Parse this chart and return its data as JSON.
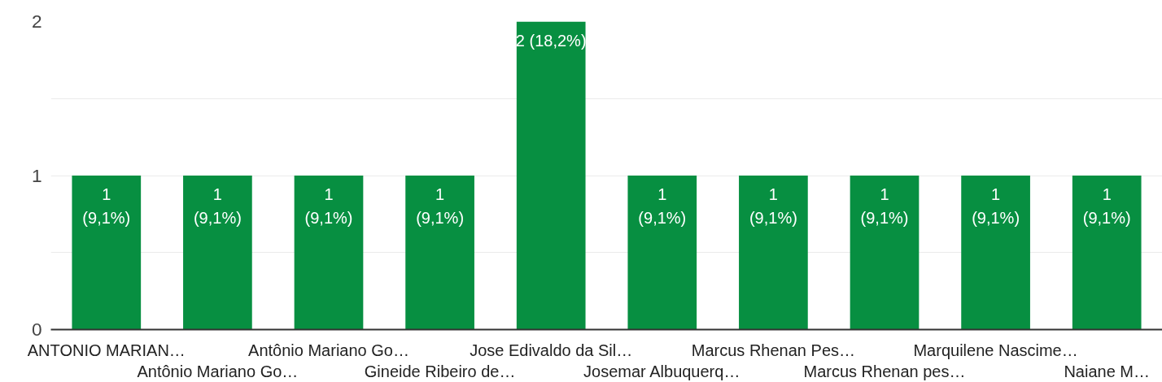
{
  "chart_data": {
    "type": "bar",
    "categories": [
      "ANTONIO MARIAN…",
      "Antônio Mariano Go…",
      "Antônio Mariano Go…",
      "Gineide Ribeiro de…",
      "Jose Edivaldo da Sil…",
      "Josemar Albuquerq…",
      "Marcus Rhenan Pes…",
      "Marcus Rhenan pes…",
      "Marquilene Nascime…",
      "Naiane M…"
    ],
    "values": [
      1,
      1,
      1,
      1,
      2,
      1,
      1,
      1,
      1,
      1
    ],
    "value_labels": [
      "1\n(9,1%)",
      "1\n(9,1%)",
      "1\n(9,1%)",
      "1\n(9,1%)",
      "2 (18,2%)",
      "1\n(9,1%)",
      "1\n(9,1%)",
      "1\n(9,1%)",
      "1\n(9,1%)",
      "1\n(9,1%)"
    ],
    "color": "#078f41",
    "ylim": [
      0,
      2
    ],
    "yticks": [
      0,
      {
        "value": 0.5,
        "label": null
      },
      1,
      {
        "value": 1.5,
        "label": null
      },
      2
    ],
    "grid": "y"
  }
}
